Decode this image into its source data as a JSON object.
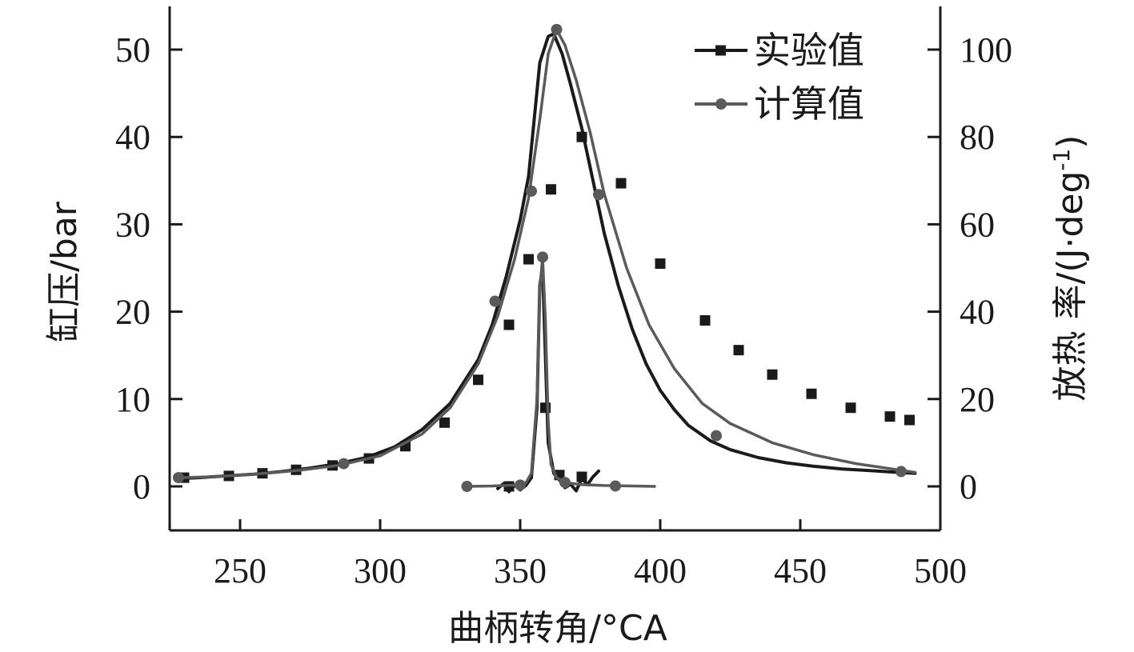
{
  "chart_data": {
    "type": "line",
    "xlabel": "曲柄转角/°CA",
    "ylabel_left": "缸压/bar",
    "ylabel_right_main": "放热 率/(J·deg",
    "ylabel_right_sup": "-1",
    "ylabel_right_close": ")",
    "xlim": [
      212,
      1175
    ],
    "ylim_left": [
      -5,
      55
    ],
    "ylim_right": [
      -10,
      110
    ],
    "xticks": [
      250,
      300,
      350,
      400,
      450,
      500
    ],
    "yticks_left": [
      0,
      10,
      20,
      30,
      40,
      50
    ],
    "yticks_right": [
      0,
      20,
      40,
      60,
      80,
      100
    ],
    "legend_position": "top-right",
    "colors": {
      "experimental": "#1a1a1a",
      "calculated": "#5a5a5a",
      "axis": "#1a1a1a"
    },
    "legend": [
      {
        "label": "实验值",
        "marker": "square",
        "color": "#1a1a1a"
      },
      {
        "label": "计算值",
        "marker": "circle",
        "color": "#5a5a5a"
      }
    ],
    "series": [
      {
        "name": "实验值",
        "quantity": "pressure",
        "axis": "left",
        "marker": "square",
        "color": "#1a1a1a",
        "x": [
          228,
          235,
          245,
          255,
          265,
          275,
          285,
          295,
          305,
          315,
          325,
          335,
          340,
          345,
          350,
          353,
          355,
          357,
          360,
          362,
          365,
          368,
          372,
          376,
          380,
          385,
          390,
          395,
          400,
          405,
          410,
          418,
          425,
          435,
          445,
          455,
          465,
          475,
          485,
          491
        ],
        "y": [
          0.9,
          1.0,
          1.2,
          1.4,
          1.7,
          2.1,
          2.6,
          3.3,
          4.5,
          6.5,
          9.5,
          14.5,
          18.5,
          24.0,
          30.5,
          35.5,
          42.0,
          48.5,
          51.5,
          51.8,
          49.5,
          46.0,
          41.0,
          35.0,
          29.0,
          23.0,
          18.0,
          14.0,
          11.0,
          8.8,
          7.0,
          5.2,
          4.2,
          3.3,
          2.7,
          2.3,
          2.0,
          1.8,
          1.6,
          1.5
        ],
        "markers_x": [
          230,
          246,
          258,
          270,
          283,
          296,
          309,
          323,
          335,
          346,
          353,
          361,
          372,
          386,
          400,
          416,
          428,
          440,
          454,
          468,
          482,
          489
        ],
        "markers_y": [
          1.0,
          1.2,
          1.5,
          1.9,
          2.4,
          3.2,
          4.6,
          7.3,
          12.2,
          18.5,
          26.0,
          34.0,
          40.0,
          34.7,
          25.5,
          19.0,
          15.6,
          12.8,
          10.6,
          9.0,
          8.0,
          7.6
        ]
      },
      {
        "name": "计算值",
        "quantity": "pressure",
        "axis": "left",
        "marker": "circle",
        "color": "#5a5a5a",
        "x": [
          228,
          240,
          255,
          270,
          285,
          300,
          315,
          325,
          335,
          342,
          348,
          353,
          357,
          360,
          363,
          366,
          370,
          375,
          380,
          388,
          396,
          405,
          415,
          425,
          440,
          455,
          470,
          485,
          491
        ],
        "y": [
          1.0,
          1.1,
          1.4,
          1.8,
          2.4,
          3.5,
          6.0,
          9.0,
          14.0,
          19.5,
          26.0,
          33.0,
          42.0,
          49.5,
          52.3,
          50.5,
          46.5,
          40.5,
          33.5,
          25.0,
          18.5,
          13.5,
          9.5,
          7.2,
          5.0,
          3.6,
          2.6,
          1.9,
          1.6
        ],
        "markers_x": [
          228,
          287,
          341,
          354,
          363,
          378,
          420,
          486
        ],
        "markers_y": [
          1.0,
          2.6,
          21.2,
          33.8,
          52.3,
          33.4,
          5.8,
          1.7
        ]
      },
      {
        "name": "实验值",
        "quantity": "heat_release_rate",
        "axis": "right",
        "marker": "square",
        "color": "#1a1a1a",
        "x": [
          342,
          344,
          346,
          348,
          350,
          352,
          354,
          356,
          357,
          358,
          359,
          360,
          362,
          364,
          366,
          368,
          370,
          372,
          374,
          376,
          378
        ],
        "y": [
          -0.5,
          0.6,
          -1.2,
          0.3,
          -0.8,
          0.2,
          2.0,
          18.0,
          46.0,
          50.0,
          30.0,
          10.0,
          3.0,
          1.5,
          -0.3,
          0.5,
          -1.0,
          1.8,
          0.4,
          2.2,
          3.5
        ],
        "markers_x": [
          346,
          359,
          364,
          372
        ],
        "markers_y": [
          0.0,
          18.0,
          2.6,
          2.2
        ]
      },
      {
        "name": "计算值",
        "quantity": "heat_release_rate",
        "axis": "right",
        "marker": "circle",
        "color": "#5a5a5a",
        "x": [
          331,
          340,
          348,
          352,
          354,
          356,
          357,
          358,
          359,
          360,
          361,
          363,
          366,
          372,
          380,
          390,
          398
        ],
        "y": [
          0.0,
          0.1,
          0.3,
          0.8,
          3.0,
          20.0,
          45.0,
          52.5,
          38.0,
          15.0,
          5.0,
          2.0,
          0.9,
          0.4,
          0.2,
          0.1,
          0.0
        ],
        "markers_x": [
          331,
          350,
          358,
          366,
          384
        ],
        "markers_y": [
          0.0,
          0.3,
          52.5,
          0.9,
          0.1
        ]
      }
    ]
  }
}
